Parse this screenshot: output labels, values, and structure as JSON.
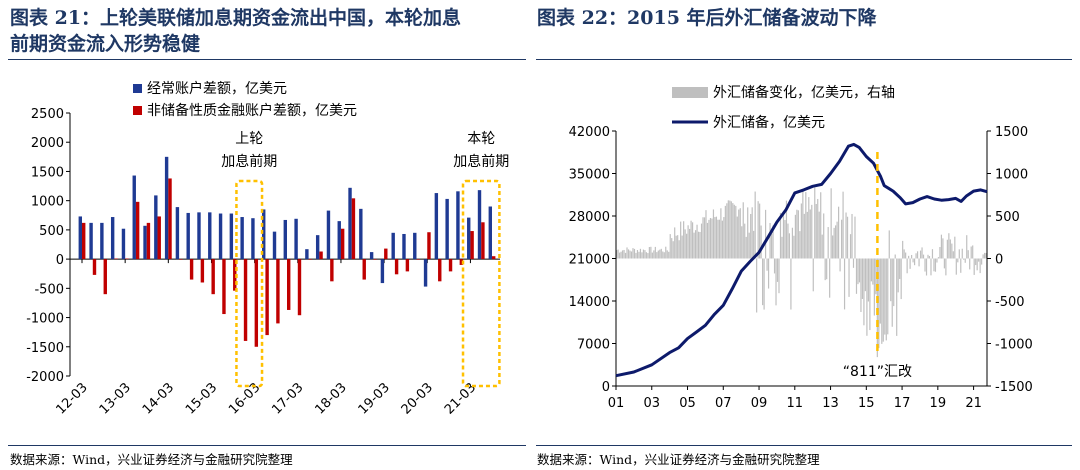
{
  "header": {
    "title_left_line1": "图表 21：上轮美联储加息期资金流出中国，本轮加息",
    "title_left_line2": "前期资金流入形势稳健",
    "title_right_line1": "图表 22：2015 年后外汇储备波动下降"
  },
  "footer": {
    "source_left": "数据来源：Wind，兴业证券经济与金融研究院整理",
    "source_right": "数据来源：Wind，兴业证券经济与金融研究院整理"
  },
  "chart_data": [
    {
      "type": "bar",
      "title": "",
      "series_names": [
        "经常账户差额，亿美元",
        "非储备性质金融账户差额，亿美元"
      ],
      "colors": [
        "#1f3a93",
        "#c00000"
      ],
      "ylim": [
        -2000,
        2500
      ],
      "yticks": [
        -2000,
        -1500,
        -1000,
        -500,
        0,
        500,
        1000,
        1500,
        2000,
        2500
      ],
      "xticks": [
        "12-03",
        "13-03",
        "14-03",
        "15-03",
        "16-03",
        "17-03",
        "18-03",
        "19-03",
        "20-03",
        "21-03"
      ],
      "quarters": [
        "12Q1",
        "12Q2",
        "12Q3",
        "12Q4",
        "13Q1",
        "13Q2",
        "13Q3",
        "13Q4",
        "14Q1",
        "14Q2",
        "14Q3",
        "14Q4",
        "15Q1",
        "15Q2",
        "15Q3",
        "15Q4",
        "16Q1",
        "16Q2",
        "16Q3",
        "16Q4",
        "17Q1",
        "17Q2",
        "17Q3",
        "17Q4",
        "18Q1",
        "18Q2",
        "18Q3",
        "18Q4",
        "19Q1",
        "19Q2",
        "19Q3",
        "19Q4",
        "20Q1",
        "20Q2",
        "20Q3",
        "20Q4",
        "21Q1",
        "21Q2",
        "21Q3"
      ],
      "current_account": [
        730,
        620,
        620,
        720,
        520,
        1430,
        570,
        1090,
        1750,
        890,
        790,
        800,
        800,
        780,
        780,
        720,
        700,
        850,
        470,
        670,
        690,
        170,
        410,
        830,
        650,
        1220,
        860,
        120,
        -410,
        450,
        430,
        450,
        -470,
        1130,
        1030,
        1160,
        710,
        1180,
        900
      ],
      "financial_account": [
        620,
        -270,
        -600,
        10,
        10,
        980,
        620,
        730,
        1380,
        -10,
        -350,
        -400,
        -600,
        -940,
        -540,
        -1400,
        -1500,
        -1300,
        -1100,
        -870,
        -960,
        -10,
        130,
        -380,
        520,
        1040,
        -350,
        -10,
        180,
        -260,
        -210,
        -10,
        460,
        -380,
        -210,
        -100,
        480,
        630,
        50
      ],
      "annotations": [
        {
          "text_line1": "上轮",
          "text_line2": "加息前期",
          "from": "15Q4",
          "to": "16Q1"
        },
        {
          "text_line1": "本轮",
          "text_line2": "加息前期",
          "from": "21Q1",
          "to": "21Q3"
        }
      ]
    },
    {
      "type": "line",
      "title": "",
      "bar_series_name": "外汇储备变化，亿美元，右轴",
      "line_series_name": "外汇储备，亿美元",
      "colors": [
        "#bfbfbf",
        "#0d1a6b"
      ],
      "ylim_left": [
        0,
        42000
      ],
      "yticks_left": [
        0,
        7000,
        14000,
        21000,
        28000,
        35000,
        42000
      ],
      "ylim_right": [
        -1500,
        1500
      ],
      "yticks_right": [
        -1500,
        -1000,
        -500,
        0,
        500,
        1000,
        1500
      ],
      "xticks": [
        "01",
        "03",
        "05",
        "07",
        "09",
        "11",
        "13",
        "15",
        "17",
        "19",
        "21"
      ],
      "xlim_years": [
        2001,
        2021.75
      ],
      "line_x_years": [
        2001.0,
        2002.0,
        2003.0,
        2004.0,
        2004.5,
        2005.0,
        2005.5,
        2006.0,
        2006.5,
        2007.0,
        2007.5,
        2008.0,
        2008.5,
        2009.0,
        2009.5,
        2010.0,
        2010.5,
        2011.0,
        2011.5,
        2012.0,
        2012.5,
        2013.0,
        2013.5,
        2014.0,
        2014.3,
        2014.6,
        2015.0,
        2015.4,
        2015.8,
        2016.0,
        2016.5,
        2016.9,
        2017.2,
        2017.6,
        2018.0,
        2018.4,
        2018.8,
        2019.2,
        2019.6,
        2020.0,
        2020.3,
        2020.6,
        2021.0,
        2021.4,
        2021.75
      ],
      "line_values": [
        1700,
        2300,
        3500,
        5500,
        6300,
        7800,
        8900,
        10000,
        11800,
        13300,
        16000,
        18900,
        20500,
        22000,
        24500,
        27000,
        29000,
        31800,
        32300,
        32900,
        33200,
        35000,
        37000,
        39500,
        39800,
        39300,
        37800,
        36700,
        34500,
        33000,
        32100,
        31000,
        30000,
        30200,
        30800,
        31200,
        30800,
        30600,
        30700,
        30900,
        30400,
        31300,
        32100,
        32300,
        32000
      ],
      "bar_note": "monthly change in reserves, right axis; large swings before 2015, smaller after",
      "vline": {
        "label": "“811”汇改",
        "x_year": 2015.62
      }
    }
  ]
}
